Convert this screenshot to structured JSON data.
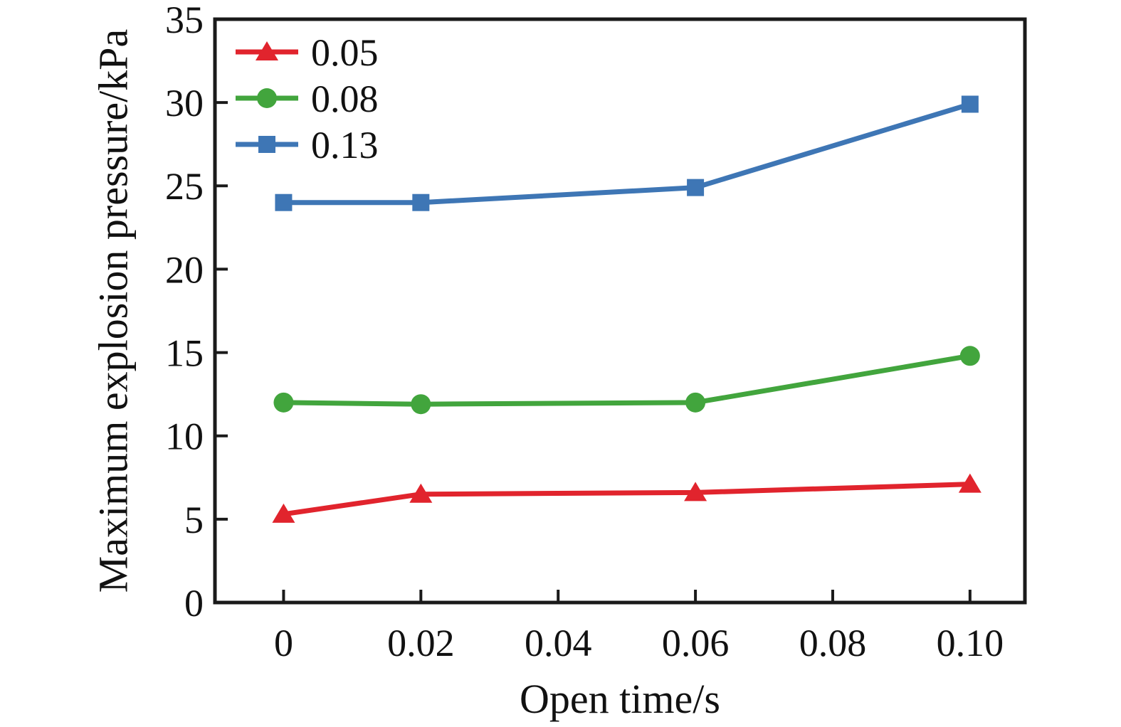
{
  "chart_data": {
    "type": "line",
    "title": "",
    "xlabel": "Open time/s",
    "ylabel": "Maximum explosion pressure/kPa",
    "x": [
      0,
      0.02,
      0.06,
      0.1
    ],
    "series": [
      {
        "name": "0.05",
        "marker": "triangle",
        "color": "#e1242d",
        "values": [
          5.3,
          6.5,
          6.6,
          7.1
        ]
      },
      {
        "name": "0.08",
        "marker": "circle",
        "color": "#42a53d",
        "values": [
          12.0,
          11.9,
          12.0,
          14.8
        ]
      },
      {
        "name": "0.13",
        "marker": "square",
        "color": "#3e76b5",
        "values": [
          24.0,
          24.0,
          24.9,
          29.9
        ]
      }
    ],
    "xticks": [
      0,
      0.02,
      0.04,
      0.06,
      0.08,
      0.1
    ],
    "xtick_labels": [
      "0",
      "0.02",
      "0.04",
      "0.06",
      "0.08",
      "0.10"
    ],
    "yticks": [
      0,
      5,
      10,
      15,
      20,
      25,
      30,
      35
    ],
    "ytick_labels": [
      "0",
      "5",
      "10",
      "15",
      "20",
      "25",
      "30",
      "35"
    ],
    "xlim": [
      -0.01,
      0.108
    ],
    "ylim": [
      0,
      35
    ],
    "grid": false,
    "legend_position": "top-left"
  },
  "styles": {
    "axis_color": "#1a1a1a",
    "text_color": "#111111",
    "background": "#ffffff"
  }
}
